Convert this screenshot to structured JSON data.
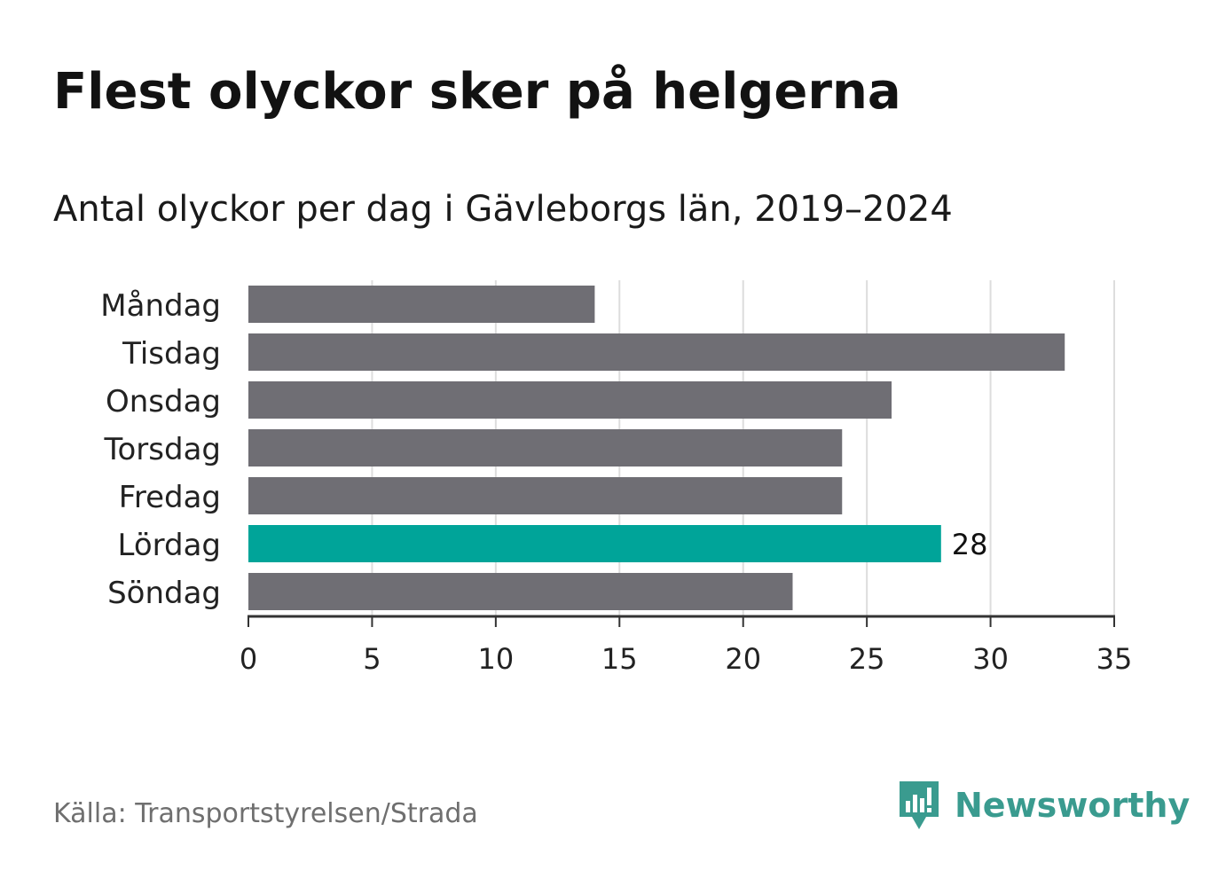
{
  "title": "Flest olyckor sker på helgerna",
  "subtitle": "Antal olyckor per dag i Gävleborgs län, 2019–2024",
  "source": "Källa: Transportstyrelsen/Strada",
  "logo": {
    "text": "Newsworthy",
    "icon": "newsworthy-logo-icon"
  },
  "colors": {
    "bar": "#6f6e74",
    "highlight": "#00a499",
    "grid": "#dddddd",
    "axis": "#333333",
    "logo": "#3a9b8f"
  },
  "chart_data": {
    "type": "bar",
    "orientation": "horizontal",
    "categories": [
      "Måndag",
      "Tisdag",
      "Onsdag",
      "Torsdag",
      "Fredag",
      "Lördag",
      "Söndag"
    ],
    "values": [
      14,
      33,
      26,
      24,
      24,
      28,
      22
    ],
    "highlight_category": "Lördag",
    "data_labels": [
      {
        "category": "Lördag",
        "text": "28"
      }
    ],
    "xlim": [
      0,
      35
    ],
    "xticks": [
      0,
      5,
      10,
      15,
      20,
      25,
      30,
      35
    ],
    "xlabel": "",
    "ylabel": "",
    "grid": true
  }
}
